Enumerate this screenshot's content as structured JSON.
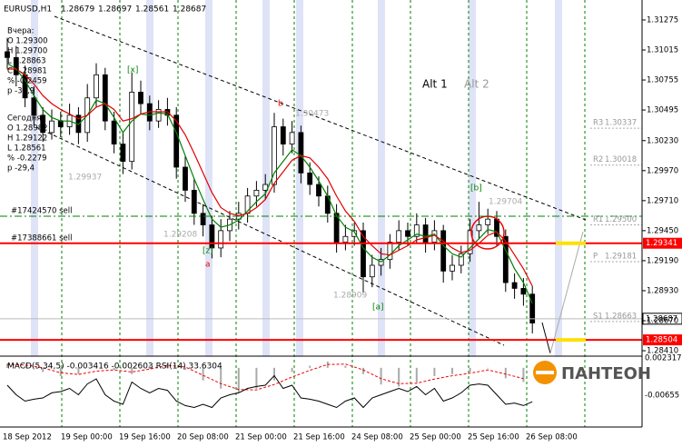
{
  "chart_data": {
    "type": "candlestick",
    "symbol": "EURUSD,H1",
    "header_values": [
      1.28679,
      1.28697,
      1.28561,
      1.28687
    ],
    "open": [
      1.31,
      1.3095,
      1.308,
      1.306,
      1.3045,
      1.303,
      1.304,
      1.3035,
      1.3045,
      1.303,
      1.306,
      1.308,
      1.304,
      1.302,
      1.3005,
      1.3065,
      1.3055,
      1.304,
      1.305,
      1.3045,
      1.3,
      1.298,
      1.296,
      1.295,
      1.293,
      1.2945,
      1.2955,
      1.296,
      1.2975,
      1.298,
      1.2985,
      1.3035,
      1.302,
      1.303,
      1.2995,
      1.2985,
      1.2975,
      1.296,
      1.2935,
      1.294,
      1.2945,
      1.2905,
      1.2915,
      1.292,
      1.2935,
      1.2945,
      1.294,
      1.295,
      1.2935,
      1.2945,
      1.291,
      1.2915,
      1.2925,
      1.2945,
      1.295,
      1.2955,
      1.294,
      1.29,
      1.2895,
      1.289
    ],
    "high": [
      1.3112,
      1.3105,
      1.3088,
      1.307,
      1.3052,
      1.305,
      1.3048,
      1.3055,
      1.3052,
      1.3072,
      1.309,
      1.3086,
      1.3048,
      1.303,
      1.3082,
      1.3075,
      1.3062,
      1.3058,
      1.306,
      1.3052,
      1.301,
      1.299,
      1.2968,
      1.2958,
      1.2955,
      1.2962,
      1.297,
      1.2982,
      1.2988,
      1.2994,
      1.3047,
      1.3042,
      1.304,
      1.3036,
      1.3004,
      1.2992,
      1.2984,
      1.2968,
      1.295,
      1.2952,
      1.2952,
      1.2924,
      1.293,
      1.2942,
      1.2954,
      1.2952,
      1.296,
      1.2956,
      1.2954,
      1.295,
      1.2924,
      1.2932,
      1.2955,
      1.297,
      1.2964,
      1.2962,
      1.2946,
      1.2908,
      1.2904,
      1.2897
    ],
    "low": [
      1.3085,
      1.307,
      1.3052,
      1.3036,
      1.3022,
      1.3024,
      1.3026,
      1.3028,
      1.302,
      1.3022,
      1.3052,
      1.3032,
      1.3012,
      1.2994,
      1.2998,
      1.3046,
      1.3032,
      1.3034,
      1.3036,
      1.299,
      1.297,
      1.295,
      1.294,
      1.2921,
      1.2922,
      1.2936,
      1.2946,
      1.2952,
      1.2966,
      1.2972,
      1.2978,
      1.301,
      1.3012,
      1.2986,
      1.2976,
      1.2966,
      1.2952,
      1.2926,
      1.2928,
      1.2932,
      1.2891,
      1.2896,
      1.2906,
      1.2912,
      1.2928,
      1.2932,
      1.2934,
      1.2926,
      1.2928,
      1.29,
      1.2902,
      1.2908,
      1.2918,
      1.2938,
      1.2942,
      1.2932,
      1.2892,
      1.2886,
      1.288,
      1.2856
    ],
    "close": [
      1.3095,
      1.308,
      1.306,
      1.3045,
      1.303,
      1.304,
      1.3035,
      1.3045,
      1.303,
      1.306,
      1.308,
      1.304,
      1.302,
      1.3005,
      1.3065,
      1.3055,
      1.304,
      1.305,
      1.3045,
      1.3,
      1.298,
      1.296,
      1.295,
      1.293,
      1.2945,
      1.2955,
      1.296,
      1.2975,
      1.298,
      1.2985,
      1.3035,
      1.302,
      1.303,
      1.2995,
      1.2985,
      1.2975,
      1.296,
      1.2935,
      1.294,
      1.2945,
      1.2905,
      1.2915,
      1.292,
      1.2935,
      1.2945,
      1.294,
      1.295,
      1.2935,
      1.2945,
      1.291,
      1.2915,
      1.2925,
      1.2945,
      1.295,
      1.2955,
      1.294,
      1.29,
      1.2895,
      1.289,
      1.2865
    ],
    "lines": [
      {
        "color": "#008000",
        "values": [
          1.309,
          1.3085,
          1.3075,
          1.3062,
          1.305,
          1.3043,
          1.304,
          1.304,
          1.3037,
          1.3045,
          1.3058,
          1.3055,
          1.3043,
          1.303,
          1.304,
          1.3046,
          1.3045,
          1.3047,
          1.3046,
          1.303,
          1.301,
          1.299,
          1.2972,
          1.2955,
          1.2948,
          1.295,
          1.2954,
          1.2962,
          1.297,
          1.2977,
          1.2995,
          1.3005,
          1.3015,
          1.301,
          1.3,
          1.2988,
          1.2975,
          1.2958,
          1.2948,
          1.2944,
          1.293,
          1.2922,
          1.2918,
          1.2924,
          1.2932,
          1.2937,
          1.2942,
          1.294,
          1.2942,
          1.2932,
          1.2925,
          1.2922,
          1.293,
          1.2938,
          1.2946,
          1.2944,
          1.2928,
          1.2912,
          1.29,
          1.2882
        ]
      },
      {
        "color": "#e00000",
        "values": [
          1.3085,
          1.3085,
          1.308,
          1.3072,
          1.3062,
          1.3055,
          1.305,
          1.3046,
          1.3042,
          1.3045,
          1.3052,
          1.3055,
          1.305,
          1.304,
          1.3042,
          1.3046,
          1.3048,
          1.3048,
          1.3048,
          1.304,
          1.3028,
          1.3012,
          1.2995,
          1.2978,
          1.2965,
          1.296,
          1.2958,
          1.296,
          1.2965,
          1.2972,
          1.2986,
          1.2996,
          1.3006,
          1.301,
          1.3008,
          1.3,
          1.299,
          1.2975,
          1.2962,
          1.2953,
          1.294,
          1.2932,
          1.2925,
          1.2924,
          1.2928,
          1.2932,
          1.2937,
          1.2939,
          1.2941,
          1.2936,
          1.293,
          1.2926,
          1.2928,
          1.2934,
          1.2941,
          1.2944,
          1.2936,
          1.2924,
          1.2912,
          1.2897
        ]
      }
    ],
    "ylim": [
      1.28363,
      1.31448
    ],
    "yticks": [
      1.31275,
      1.31015,
      1.30755,
      1.30495,
      {
        "value": 1.3023,
        "label": "1.30230"
      },
      {
        "value": 1.2997,
        "label": "1.29970"
      },
      {
        "value": 1.2971,
        "label": "1.29710"
      },
      {
        "value": 1.2945,
        "label": "1.29450"
      },
      {
        "value": 1.2919,
        "label": "1.29190"
      },
      {
        "value": 1.2893,
        "label": "1.28930"
      },
      {
        "value": 1.2867,
        "label": "1.28670"
      },
      {
        "value": 1.2841,
        "label": "1.28410"
      }
    ],
    "xtick_labels": [
      "18 Sep 2012",
      "19 Sep 00:00",
      "19 Sep 16:00",
      "20 Sep 08:00",
      "21 Sep 00:00",
      "21 Sep 16:00",
      "24 Sep 08:00",
      "25 Sep 00:00",
      "25 Sep 16:00",
      "26 Sep 08:00"
    ],
    "levels": [
      {
        "value": 1.29341,
        "color": "#ff0000"
      },
      {
        "value": 1.28504,
        "color": "#ff0000"
      }
    ],
    "current_price": 1.28687,
    "pivots": [
      {
        "name": "R3",
        "value": 1.30337
      },
      {
        "name": "R2",
        "value": 1.30018
      },
      {
        "name": "R1",
        "value": {
          "value": 1.295,
          "label": "1.29500"
        }
      },
      {
        "name": "P",
        "value": 1.29181
      },
      {
        "name": "S1",
        "value": 1.28663
      }
    ],
    "orders": [
      "#17424570 sell",
      "#17388661 sell"
    ],
    "annotations": [
      "[x]",
      "b",
      "[b]",
      "[z]",
      "a",
      "[a]",
      "Alt 1",
      "Alt 2",
      "1.30473",
      "1.29937",
      "1.29208",
      "1.28909",
      "1.29704"
    ],
    "indicator": {
      "title": "MACD(5,34,5) -0.003416 -0.002603  RSI(14) 33.6304",
      "ylim": [
        -0.0142,
        0.0028
      ],
      "yticks": [
        0.002317,
        -0.00655
      ],
      "histogram": [
        0.001,
        0.0005,
        -0.001,
        -0.002,
        -0.0015,
        0.0,
        -0.0005,
        -0.0015,
        0.0005,
        0.001,
        -0.0005,
        -0.003,
        -0.005,
        -0.006,
        -0.005,
        -0.003,
        -0.001,
        0.0005,
        0.0015,
        0.0005,
        -0.0015,
        -0.004,
        -0.0045,
        -0.0035,
        -0.002,
        -0.0015,
        -0.001,
        0.0,
        -0.0025,
        -0.0034
      ],
      "signal": [
        0.0008,
        0.0007,
        0.0,
        -0.0012,
        -0.0016,
        -0.0008,
        -0.0005,
        -0.001,
        -0.0003,
        0.0006,
        0.0002,
        -0.0018,
        -0.0038,
        -0.0052,
        -0.0053,
        -0.004,
        -0.0022,
        -0.0006,
        0.0008,
        0.0009,
        -0.0005,
        -0.0026,
        -0.0038,
        -0.0037,
        -0.0027,
        -0.0019,
        -0.0013,
        -0.0005,
        -0.0015,
        -0.0026
      ],
      "rsi_lim": [
        0,
        100
      ],
      "rsi": [
        60,
        45,
        35,
        38,
        40,
        48,
        50,
        55,
        45,
        62,
        70,
        45,
        35,
        30,
        65,
        55,
        48,
        55,
        52,
        35,
        28,
        25,
        30,
        25,
        40,
        45,
        48,
        55,
        58,
        60,
        75,
        55,
        60,
        40,
        38,
        35,
        30,
        25,
        35,
        40,
        25,
        40,
        45,
        50,
        55,
        50,
        58,
        45,
        55,
        35,
        40,
        48,
        60,
        62,
        60,
        45,
        30,
        32,
        28,
        34
      ]
    }
  },
  "info": {
    "yesterday": [
      "Вчера:",
      "O 1.29300",
      "H 1.29700",
      "L 1.28863",
      "C 1.28981",
      "% -0.2459",
      "p -31,9"
    ],
    "today": [
      "Сегодня:",
      "O 1.28982",
      "H 1.29122",
      "L 1.28561",
      "% -0.2279",
      "p -29,4"
    ]
  },
  "logo": "ПАНТЕОН"
}
